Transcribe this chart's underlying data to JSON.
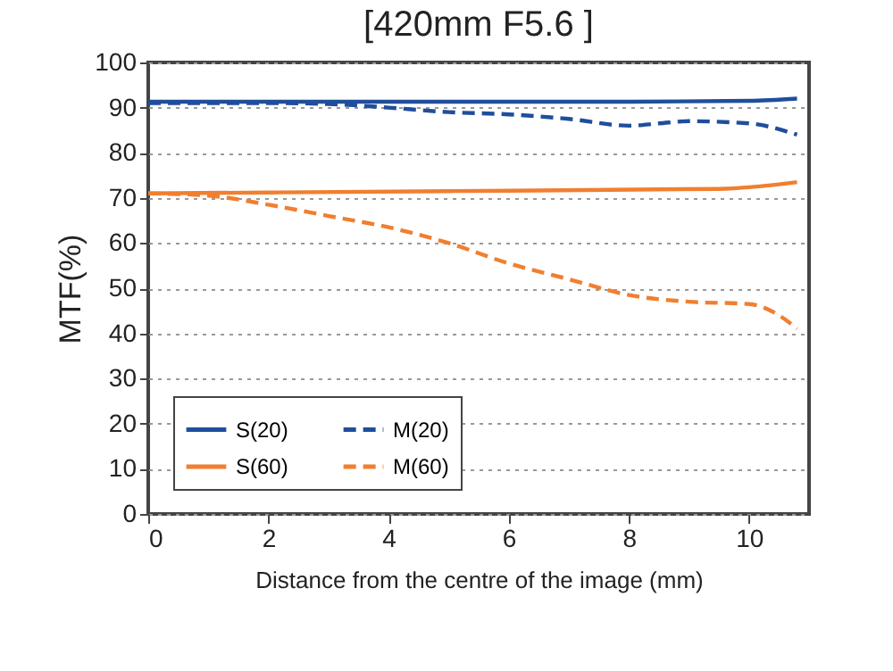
{
  "chart_data": {
    "type": "line",
    "title": "[420mm F5.6 ]",
    "xlabel": "Distance from the centre of the image (mm)",
    "ylabel": "MTF(%)",
    "xlim": [
      0,
      11
    ],
    "xticks": [
      0,
      2,
      4,
      6,
      8,
      10
    ],
    "ylim": [
      0,
      100
    ],
    "yticks": [
      0,
      10,
      20,
      30,
      40,
      50,
      60,
      70,
      80,
      90,
      100
    ],
    "grid": "y",
    "legend": "bottom left",
    "series": [
      {
        "name": "S(20)",
        "color": "#1f4e9c",
        "line_style": "solid",
        "x": [
          0,
          2,
          4,
          6,
          8,
          10,
          10.8
        ],
        "values": [
          91.3,
          91.3,
          91.3,
          91.3,
          91.3,
          91.5,
          92
        ]
      },
      {
        "name": "M(20)",
        "color": "#1f4e9c",
        "line_style": "dashed",
        "x": [
          0,
          2,
          3,
          4,
          5,
          6,
          7,
          8,
          8.5,
          9,
          10,
          10.8
        ],
        "values": [
          91,
          91,
          90.8,
          90,
          89,
          88.5,
          87.5,
          86,
          86.5,
          87,
          86.5,
          84
        ]
      },
      {
        "name": "S(60)",
        "color": "#f07f30",
        "line_style": "solid",
        "x": [
          0,
          2,
          5,
          9.5,
          10.8
        ],
        "values": [
          71,
          71.2,
          71.5,
          72,
          73.5
        ]
      },
      {
        "name": "M(60)",
        "color": "#f07f30",
        "line_style": "dashed",
        "x": [
          0,
          1,
          2,
          3,
          4,
          5,
          6,
          7,
          8,
          9,
          10,
          10.5,
          10.8
        ],
        "values": [
          71,
          70.5,
          68.5,
          66,
          63.5,
          60,
          55.5,
          52,
          48.5,
          47,
          46.5,
          44,
          41
        ]
      }
    ]
  }
}
